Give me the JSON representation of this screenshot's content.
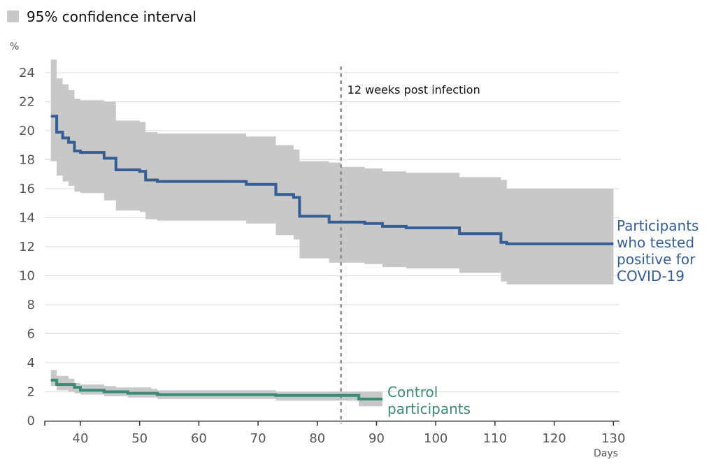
{
  "chart_data": {
    "type": "line",
    "legend": {
      "label": "95% confidence interval",
      "color": "#c8c8c8",
      "position": "top-left"
    },
    "xlabel": "Days",
    "ylabel": "%",
    "xlim": [
      34,
      130
    ],
    "ylim": [
      0,
      25
    ],
    "x_ticks": [
      40,
      50,
      60,
      70,
      80,
      90,
      100,
      110,
      120,
      130
    ],
    "y_ticks": [
      0,
      2,
      4,
      6,
      8,
      10,
      12,
      14,
      16,
      18,
      20,
      22,
      24
    ],
    "grid": "horizontal",
    "annotations": [
      {
        "text": "12 weeks post infection",
        "x": 84,
        "style": "dashed-vertical-line"
      }
    ],
    "series": [
      {
        "name": "Participants who tested positive for COVID-19",
        "color": "#355f94",
        "step": true,
        "points": [
          [
            35,
            21.0
          ],
          [
            36,
            19.9
          ],
          [
            37,
            19.5
          ],
          [
            38,
            19.2
          ],
          [
            39,
            18.6
          ],
          [
            40,
            18.5
          ],
          [
            44,
            18.1
          ],
          [
            46,
            17.3
          ],
          [
            50,
            17.2
          ],
          [
            51,
            16.6
          ],
          [
            53,
            16.5
          ],
          [
            68,
            16.3
          ],
          [
            73,
            15.6
          ],
          [
            76,
            15.4
          ],
          [
            77,
            14.1
          ],
          [
            82,
            13.7
          ],
          [
            88,
            13.6
          ],
          [
            91,
            13.4
          ],
          [
            95,
            13.3
          ],
          [
            104,
            12.9
          ],
          [
            111,
            12.3
          ],
          [
            112,
            12.2
          ],
          [
            130,
            12.2
          ]
        ],
        "ci_upper": [
          [
            35,
            24.9
          ],
          [
            36,
            23.6
          ],
          [
            37,
            23.2
          ],
          [
            38,
            22.8
          ],
          [
            39,
            22.2
          ],
          [
            40,
            22.1
          ],
          [
            44,
            22.0
          ],
          [
            46,
            20.7
          ],
          [
            50,
            20.6
          ],
          [
            51,
            19.9
          ],
          [
            53,
            19.8
          ],
          [
            68,
            19.6
          ],
          [
            73,
            19.0
          ],
          [
            76,
            18.7
          ],
          [
            77,
            17.9
          ],
          [
            82,
            17.8
          ],
          [
            84,
            17.5
          ],
          [
            88,
            17.4
          ],
          [
            91,
            17.2
          ],
          [
            95,
            17.1
          ],
          [
            104,
            16.8
          ],
          [
            111,
            16.6
          ],
          [
            112,
            16.0
          ],
          [
            130,
            15.9
          ]
        ],
        "ci_lower": [
          [
            35,
            17.9
          ],
          [
            36,
            16.9
          ],
          [
            37,
            16.5
          ],
          [
            38,
            16.2
          ],
          [
            39,
            15.8
          ],
          [
            40,
            15.7
          ],
          [
            44,
            15.2
          ],
          [
            46,
            14.5
          ],
          [
            50,
            14.4
          ],
          [
            51,
            13.9
          ],
          [
            53,
            13.8
          ],
          [
            68,
            13.6
          ],
          [
            73,
            12.8
          ],
          [
            76,
            12.5
          ],
          [
            77,
            11.2
          ],
          [
            82,
            10.9
          ],
          [
            88,
            10.8
          ],
          [
            91,
            10.6
          ],
          [
            95,
            10.5
          ],
          [
            104,
            10.2
          ],
          [
            111,
            9.6
          ],
          [
            112,
            9.4
          ],
          [
            130,
            9.4
          ]
        ]
      },
      {
        "name": "Control participants",
        "color": "#3b8a76",
        "step": true,
        "points": [
          [
            35,
            2.8
          ],
          [
            36,
            2.5
          ],
          [
            38,
            2.5
          ],
          [
            39,
            2.3
          ],
          [
            40,
            2.1
          ],
          [
            44,
            2.0
          ],
          [
            46,
            2.0
          ],
          [
            48,
            1.9
          ],
          [
            52,
            1.9
          ],
          [
            53,
            1.8
          ],
          [
            54,
            1.8
          ],
          [
            73,
            1.75
          ],
          [
            84,
            1.75
          ],
          [
            87,
            1.5
          ],
          [
            91,
            1.5
          ]
        ],
        "ci_upper": [
          [
            35,
            3.5
          ],
          [
            36,
            3.1
          ],
          [
            38,
            2.9
          ],
          [
            39,
            2.6
          ],
          [
            40,
            2.5
          ],
          [
            44,
            2.4
          ],
          [
            46,
            2.3
          ],
          [
            48,
            2.3
          ],
          [
            52,
            2.2
          ],
          [
            53,
            2.1
          ],
          [
            54,
            2.1
          ],
          [
            73,
            2.0
          ],
          [
            84,
            2.0
          ],
          [
            87,
            2.0
          ],
          [
            91,
            2.0
          ]
        ],
        "ci_lower": [
          [
            35,
            2.4
          ],
          [
            36,
            2.1
          ],
          [
            38,
            2.0
          ],
          [
            39,
            1.9
          ],
          [
            40,
            1.8
          ],
          [
            44,
            1.7
          ],
          [
            46,
            1.7
          ],
          [
            48,
            1.6
          ],
          [
            52,
            1.6
          ],
          [
            53,
            1.5
          ],
          [
            54,
            1.5
          ],
          [
            73,
            1.4
          ],
          [
            84,
            1.4
          ],
          [
            87,
            1.0
          ],
          [
            91,
            1.0
          ]
        ]
      }
    ],
    "series_labels": [
      {
        "lines": [
          "Participants",
          "who tested",
          "positive for",
          "COVID-19"
        ]
      },
      {
        "lines": [
          "Control",
          "participants"
        ]
      }
    ]
  }
}
